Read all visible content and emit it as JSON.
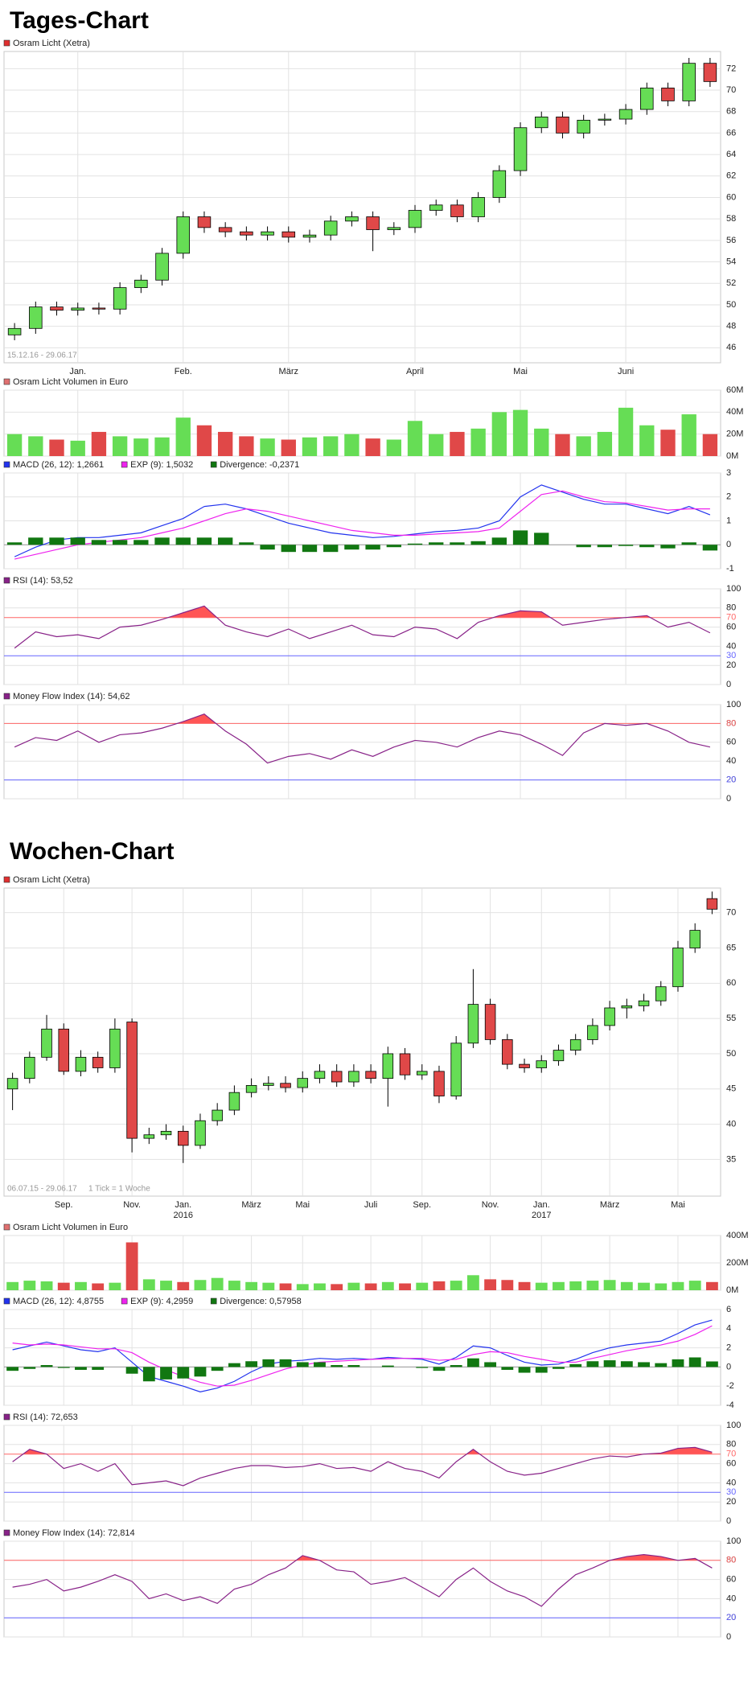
{
  "headings": [
    "Tages-Chart",
    "Wochen-Chart"
  ],
  "chart_data": [
    {
      "type": "candlestick",
      "name": "Osram Licht (Xetra)",
      "color": "#e03030",
      "date_range": "15.12.16 - 29.06.17",
      "categories": [
        null,
        null,
        null,
        "Jan.",
        null,
        null,
        null,
        null,
        "Feb.",
        null,
        null,
        null,
        null,
        "März",
        null,
        null,
        null,
        null,
        null,
        "April",
        null,
        null,
        null,
        null,
        "Mai",
        null,
        null,
        null,
        null,
        "Juni",
        null,
        null,
        null,
        null
      ],
      "open": [
        47.2,
        47.8,
        49.8,
        49.5,
        49.7,
        49.6,
        51.6,
        52.3,
        54.8,
        58.2,
        57.2,
        56.8,
        56.5,
        56.8,
        56.3,
        56.5,
        57.8,
        58.2,
        57.0,
        57.2,
        58.8,
        59.3,
        58.2,
        60.0,
        62.5,
        66.5,
        67.5,
        66.0,
        67.2,
        67.3,
        68.2,
        70.2,
        69.0,
        72.5
      ],
      "high": [
        48.3,
        50.3,
        50.3,
        50.2,
        50.2,
        52.1,
        52.8,
        55.3,
        58.7,
        58.7,
        57.7,
        57.3,
        57.3,
        57.3,
        57.0,
        58.3,
        58.7,
        58.7,
        57.7,
        59.3,
        59.8,
        59.8,
        60.5,
        63.0,
        67.0,
        68.0,
        68.0,
        67.7,
        67.8,
        68.7,
        70.7,
        70.7,
        73.0,
        73.0
      ],
      "low": [
        46.7,
        47.3,
        49.0,
        49.0,
        49.1,
        49.1,
        51.1,
        51.8,
        54.3,
        56.7,
        56.3,
        56.0,
        56.0,
        55.8,
        55.8,
        56.0,
        57.3,
        55.0,
        56.5,
        56.7,
        58.3,
        57.7,
        57.7,
        59.5,
        62.0,
        66.0,
        65.5,
        65.5,
        66.7,
        66.8,
        67.7,
        68.5,
        68.5,
        70.3
      ],
      "close": [
        47.8,
        49.8,
        49.5,
        49.7,
        49.6,
        51.6,
        52.3,
        54.8,
        58.2,
        57.2,
        56.8,
        56.5,
        56.8,
        56.3,
        56.5,
        57.8,
        58.2,
        57.0,
        57.2,
        58.8,
        59.3,
        58.2,
        60.0,
        62.5,
        66.5,
        67.5,
        66.0,
        67.2,
        67.3,
        68.2,
        70.2,
        69.0,
        72.5,
        70.8
      ],
      "up_color": "#66dd55",
      "down_color": "#e04848",
      "ylim": [
        44.6,
        73.6
      ],
      "yticks": [
        46,
        48,
        50,
        52,
        54,
        56,
        58,
        60,
        62,
        64,
        66,
        68,
        70,
        72
      ],
      "grid": true
    },
    {
      "type": "bar",
      "name": "Osram Licht Volumen in Euro",
      "color": "#e07070",
      "up_color": "#66dd55",
      "down_color": "#e04848",
      "values": [
        20,
        18,
        15,
        14,
        22,
        18,
        16,
        17,
        35,
        28,
        22,
        18,
        16,
        15,
        17,
        18,
        20,
        16,
        15,
        32,
        20,
        22,
        25,
        40,
        42,
        25,
        20,
        18,
        22,
        44,
        28,
        24,
        38,
        20
      ],
      "ylim": [
        0,
        60
      ],
      "yticks": [
        {
          "value": 0,
          "label": "0M"
        },
        {
          "value": 20,
          "label": "20M"
        },
        {
          "value": 40,
          "label": "40M"
        },
        {
          "value": 60,
          "label": "60M"
        }
      ],
      "grid": true
    },
    {
      "type": "macd",
      "series": [
        {
          "name": "MACD (26, 12): 1,2661",
          "color": "#2233ee",
          "values": [
            -0.5,
            -0.1,
            0.2,
            0.3,
            0.3,
            0.4,
            0.5,
            0.8,
            1.1,
            1.6,
            1.7,
            1.5,
            1.2,
            0.9,
            0.7,
            0.5,
            0.4,
            0.3,
            0.35,
            0.45,
            0.55,
            0.6,
            0.7,
            1.0,
            2.0,
            2.5,
            2.2,
            1.9,
            1.7,
            1.7,
            1.5,
            1.3,
            1.6,
            1.25
          ]
        },
        {
          "name": "EXP (9): 1,5032",
          "color": "#ee22ee",
          "values": [
            -0.6,
            -0.4,
            -0.2,
            0,
            0.1,
            0.2,
            0.3,
            0.5,
            0.7,
            1.0,
            1.3,
            1.5,
            1.4,
            1.2,
            1.0,
            0.8,
            0.6,
            0.5,
            0.4,
            0.4,
            0.45,
            0.5,
            0.55,
            0.7,
            1.4,
            2.1,
            2.25,
            2.0,
            1.8,
            1.75,
            1.6,
            1.45,
            1.5,
            1.5
          ]
        },
        {
          "name": "Divergence: -0,2371",
          "color": "#117711",
          "style": "bar",
          "values": [
            0.1,
            0.3,
            0.3,
            0.3,
            0.2,
            0.2,
            0.2,
            0.3,
            0.3,
            0.3,
            0.3,
            0.1,
            -0.2,
            -0.3,
            -0.3,
            -0.3,
            -0.2,
            -0.2,
            -0.1,
            0.05,
            0.1,
            0.1,
            0.15,
            0.3,
            0.6,
            0.5,
            0,
            -0.1,
            -0.1,
            -0.05,
            -0.1,
            -0.15,
            0.1,
            -0.24
          ]
        }
      ],
      "ylim": [
        -1,
        3
      ],
      "yticks": [
        -1,
        0,
        1,
        2,
        3
      ],
      "grid": true
    },
    {
      "type": "line",
      "series": [
        {
          "name": "RSI (14): 53,52",
          "color": "#882288",
          "values": [
            38,
            55,
            50,
            52,
            48,
            60,
            62,
            68,
            75,
            82,
            62,
            55,
            50,
            58,
            48,
            55,
            62,
            52,
            50,
            60,
            58,
            48,
            65,
            72,
            77,
            76,
            62,
            65,
            68,
            70,
            72,
            60,
            65,
            54
          ]
        }
      ],
      "levels": [
        70,
        30
      ],
      "level_colors": [
        "#ff6666",
        "#6666ff"
      ],
      "fill_color": "#ff5555",
      "ylim": [
        0,
        100
      ],
      "yticks": [
        0,
        20,
        40,
        60,
        80,
        100
      ],
      "grid": true
    },
    {
      "type": "line",
      "series": [
        {
          "name": "Money Flow Index (14): 54,62",
          "color": "#882288",
          "values": [
            55,
            65,
            62,
            72,
            60,
            68,
            70,
            75,
            82,
            90,
            72,
            58,
            38,
            45,
            48,
            42,
            52,
            45,
            55,
            62,
            60,
            55,
            65,
            72,
            68,
            58,
            46,
            70,
            80,
            78,
            80,
            72,
            60,
            55
          ]
        }
      ],
      "levels": [
        80,
        20
      ],
      "level_colors": [
        "#ff6666",
        "#6666ff"
      ],
      "fill_color": "#ff5555",
      "ylim": [
        0,
        100
      ],
      "yticks": [
        0,
        20,
        40,
        60,
        80,
        100
      ],
      "grid": true
    },
    {
      "type": "candlestick",
      "name": "Osram Licht (Xetra)",
      "color": "#e03030",
      "date_range": "06.07.15 - 29.06.17",
      "tick_note": "1 Tick = 1 Woche",
      "categories": [
        null,
        null,
        null,
        "Sep.",
        null,
        null,
        null,
        "Nov.",
        null,
        null,
        "Jan.",
        null,
        null,
        null,
        "März",
        null,
        null,
        "Mai",
        null,
        null,
        null,
        "Juli",
        null,
        null,
        "Sep.",
        null,
        null,
        null,
        "Nov.",
        null,
        null,
        "Jan.",
        null,
        null,
        null,
        "März",
        null,
        null,
        null,
        "Mai",
        null,
        null
      ],
      "category_sublabels": [
        null,
        null,
        null,
        null,
        null,
        null,
        null,
        null,
        null,
        null,
        "2016",
        null,
        null,
        null,
        null,
        null,
        null,
        null,
        null,
        null,
        null,
        null,
        null,
        null,
        null,
        null,
        null,
        null,
        null,
        null,
        null,
        "2017",
        null,
        null,
        null,
        null,
        null,
        null,
        null,
        null,
        null,
        null
      ],
      "open": [
        45.0,
        46.5,
        49.5,
        53.5,
        47.5,
        49.5,
        48.0,
        54.5,
        38.0,
        38.5,
        39.0,
        37.0,
        40.5,
        42.0,
        44.5,
        45.5,
        45.8,
        45.2,
        46.5,
        47.5,
        46.0,
        47.5,
        46.5,
        50.0,
        47.0,
        47.5,
        44.0,
        51.5,
        57.0,
        52.0,
        48.5,
        48.0,
        49.0,
        50.5,
        52.0,
        54.0,
        56.5,
        56.8,
        57.5,
        59.5,
        65.0,
        72.0
      ],
      "high": [
        47.3,
        50.3,
        55.5,
        54.3,
        50.5,
        50.3,
        55.0,
        55.0,
        39.5,
        40.0,
        39.8,
        41.5,
        43.0,
        45.5,
        46.5,
        46.8,
        46.8,
        47.5,
        48.5,
        48.5,
        48.5,
        48.5,
        51.0,
        50.8,
        48.5,
        48.3,
        52.5,
        62.0,
        57.8,
        52.8,
        49.3,
        49.8,
        51.3,
        52.8,
        55.0,
        57.5,
        57.8,
        58.5,
        60.3,
        66.0,
        68.5,
        73.0
      ],
      "low": [
        42.0,
        45.8,
        49.0,
        47.0,
        46.8,
        47.3,
        47.3,
        36.0,
        37.2,
        37.8,
        34.5,
        36.5,
        39.8,
        41.3,
        43.8,
        44.8,
        44.5,
        44.5,
        45.8,
        45.3,
        45.3,
        45.8,
        42.5,
        46.3,
        46.3,
        43.0,
        43.5,
        50.8,
        51.3,
        47.8,
        47.3,
        47.3,
        48.3,
        49.8,
        51.3,
        53.3,
        55.0,
        56.0,
        56.8,
        58.8,
        64.3,
        69.8
      ],
      "close": [
        46.5,
        49.5,
        53.5,
        47.5,
        49.5,
        48.0,
        53.5,
        38.0,
        38.5,
        39.0,
        37.0,
        40.5,
        42.0,
        44.5,
        45.5,
        45.8,
        45.2,
        46.5,
        47.5,
        46.0,
        47.5,
        46.5,
        50.0,
        47.0,
        47.5,
        44.0,
        51.5,
        57.0,
        52.0,
        48.5,
        48.0,
        49.0,
        50.5,
        52.0,
        54.0,
        56.5,
        56.8,
        57.5,
        59.5,
        65.0,
        67.5,
        70.5
      ],
      "up_color": "#66dd55",
      "down_color": "#e04848",
      "ylim": [
        29.8,
        73.5
      ],
      "yticks": [
        35,
        40,
        45,
        50,
        55,
        60,
        65,
        70
      ],
      "grid": true
    },
    {
      "type": "bar",
      "name": "Osram Licht Volumen in Euro",
      "color": "#e07070",
      "up_color": "#66dd55",
      "down_color": "#e04848",
      "values": [
        60,
        70,
        65,
        55,
        60,
        50,
        55,
        350,
        80,
        70,
        60,
        75,
        90,
        70,
        60,
        55,
        50,
        45,
        50,
        45,
        55,
        50,
        60,
        50,
        55,
        65,
        70,
        110,
        80,
        75,
        60,
        55,
        60,
        65,
        70,
        75,
        60,
        55,
        50,
        60,
        70,
        60
      ],
      "ylim": [
        0,
        400
      ],
      "yticks": [
        {
          "value": 0,
          "label": "0M"
        },
        {
          "value": 200,
          "label": "200M"
        },
        {
          "value": 400,
          "label": "400M"
        }
      ],
      "grid": true
    },
    {
      "type": "macd",
      "series": [
        {
          "name": "MACD (26, 12): 4,8755",
          "color": "#2233ee",
          "values": [
            1.8,
            2.2,
            2.6,
            2.2,
            1.8,
            1.6,
            2.0,
            0.5,
            -1.0,
            -1.5,
            -2.0,
            -2.6,
            -2.2,
            -1.5,
            -0.5,
            0.3,
            0.6,
            0.7,
            0.9,
            0.8,
            0.9,
            0.8,
            1.0,
            0.9,
            0.8,
            0.3,
            1.0,
            2.2,
            2.0,
            1.2,
            0.5,
            0.2,
            0.3,
            0.8,
            1.5,
            2.0,
            2.3,
            2.5,
            2.7,
            3.5,
            4.4,
            4.9
          ]
        },
        {
          "name": "EXP (9): 4,2959",
          "color": "#ee22ee",
          "values": [
            2.5,
            2.3,
            2.4,
            2.3,
            2.1,
            1.9,
            1.9,
            1.5,
            0.5,
            -0.3,
            -1.0,
            -1.6,
            -2.0,
            -1.9,
            -1.4,
            -0.8,
            -0.2,
            0.2,
            0.5,
            0.6,
            0.7,
            0.8,
            0.85,
            0.9,
            0.9,
            0.7,
            0.8,
            1.3,
            1.6,
            1.5,
            1.1,
            0.8,
            0.5,
            0.5,
            0.9,
            1.3,
            1.7,
            2.0,
            2.3,
            2.7,
            3.4,
            4.3
          ]
        },
        {
          "name": "Divergence: 0,57958",
          "color": "#117711",
          "style": "bar",
          "values": [
            -0.4,
            -0.2,
            0.2,
            -0.1,
            -0.3,
            -0.3,
            0,
            -0.7,
            -1.5,
            -1.3,
            -1.2,
            -1.0,
            -0.4,
            0.4,
            0.6,
            0.8,
            0.8,
            0.5,
            0.5,
            0.2,
            0.2,
            0,
            0.15,
            0,
            -0.1,
            -0.4,
            0.2,
            0.9,
            0.5,
            -0.3,
            -0.6,
            -0.6,
            -0.2,
            0.3,
            0.6,
            0.7,
            0.6,
            0.5,
            0.4,
            0.8,
            1.0,
            0.58
          ]
        }
      ],
      "ylim": [
        -4,
        6
      ],
      "yticks": [
        -4,
        -2,
        0,
        2,
        4,
        6
      ],
      "grid": true
    },
    {
      "type": "line",
      "series": [
        {
          "name": "RSI (14): 72,653",
          "color": "#882288",
          "values": [
            62,
            75,
            70,
            55,
            60,
            52,
            60,
            38,
            40,
            42,
            37,
            45,
            50,
            55,
            58,
            58,
            56,
            57,
            60,
            55,
            56,
            52,
            62,
            55,
            52,
            45,
            62,
            75,
            62,
            52,
            48,
            50,
            55,
            60,
            65,
            68,
            67,
            70,
            71,
            76,
            77,
            72
          ]
        }
      ],
      "levels": [
        70,
        30
      ],
      "level_colors": [
        "#ff6666",
        "#6666ff"
      ],
      "fill_color": "#ff5555",
      "ylim": [
        0,
        100
      ],
      "yticks": [
        0,
        20,
        40,
        60,
        80,
        100
      ],
      "grid": true
    },
    {
      "type": "line",
      "series": [
        {
          "name": "Money Flow Index (14): 72,814",
          "color": "#882288",
          "values": [
            52,
            55,
            60,
            48,
            52,
            58,
            65,
            58,
            40,
            45,
            38,
            42,
            35,
            50,
            55,
            65,
            72,
            85,
            80,
            70,
            68,
            55,
            58,
            62,
            52,
            42,
            60,
            72,
            58,
            48,
            42,
            32,
            50,
            65,
            72,
            80,
            84,
            86,
            84,
            80,
            82,
            72
          ]
        }
      ],
      "levels": [
        80,
        20
      ],
      "level_colors": [
        "#ff6666",
        "#6666ff"
      ],
      "fill_color": "#ff5555",
      "ylim": [
        0,
        100
      ],
      "yticks": [
        0,
        20,
        40,
        60,
        80,
        100
      ],
      "grid": true
    }
  ]
}
